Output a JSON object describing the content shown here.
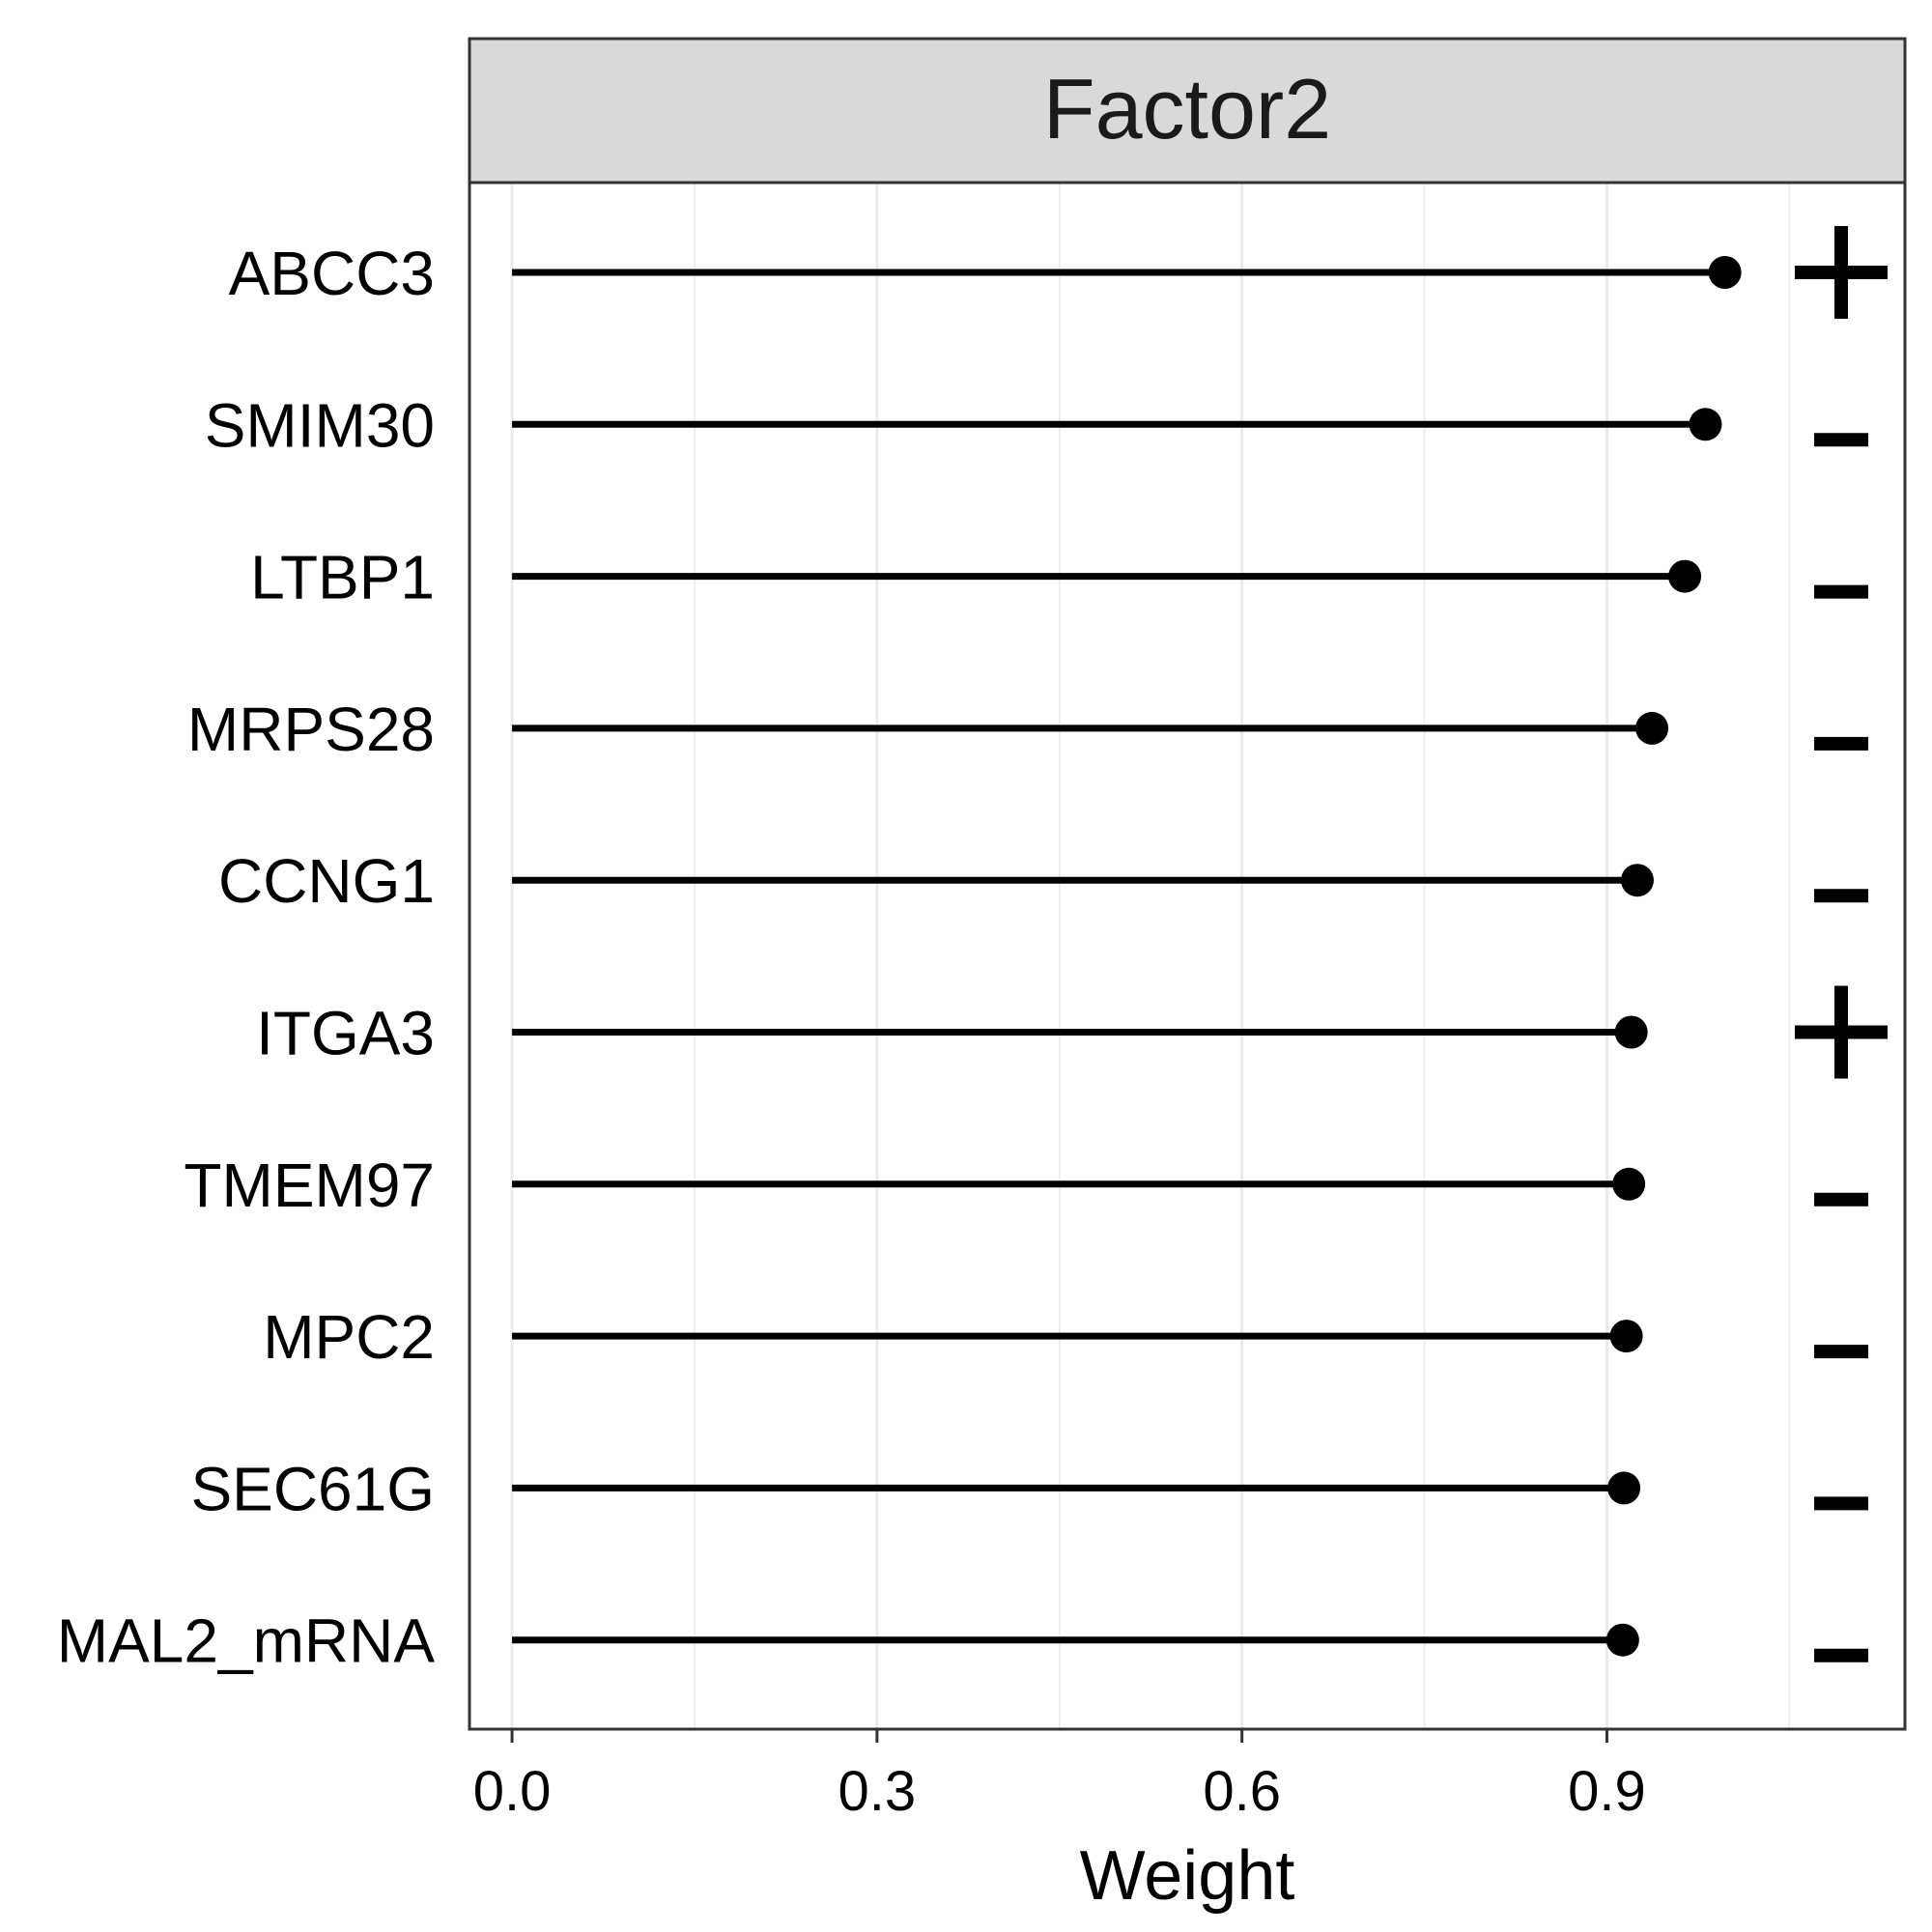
{
  "chart_data": {
    "type": "lollipop",
    "title": "Factor2",
    "xlabel": "Weight",
    "ylabel": "",
    "xlim": [
      -0.035,
      1.145
    ],
    "x_ticks": [
      0.0,
      0.3,
      0.6,
      0.9
    ],
    "x_tick_labels": [
      "0.0",
      "0.3",
      "0.6",
      "0.9"
    ],
    "grid": true,
    "categories": [
      "ABCC3",
      "SMIM30",
      "LTBP1",
      "MRPS28",
      "CCNG1",
      "ITGA3",
      "TMEM97",
      "MPC2",
      "SEC61G",
      "MAL2_mRNA"
    ],
    "values": [
      0.997,
      0.981,
      0.964,
      0.937,
      0.925,
      0.92,
      0.918,
      0.916,
      0.914,
      0.913
    ],
    "signs": [
      "+",
      "-",
      "-",
      "-",
      "-",
      "+",
      "-",
      "-",
      "-",
      "-"
    ],
    "colors": {
      "strip_fill": "#d9d9d9",
      "panel_border": "#333333",
      "grid": "#ebebeb",
      "mark": "#000000"
    }
  }
}
